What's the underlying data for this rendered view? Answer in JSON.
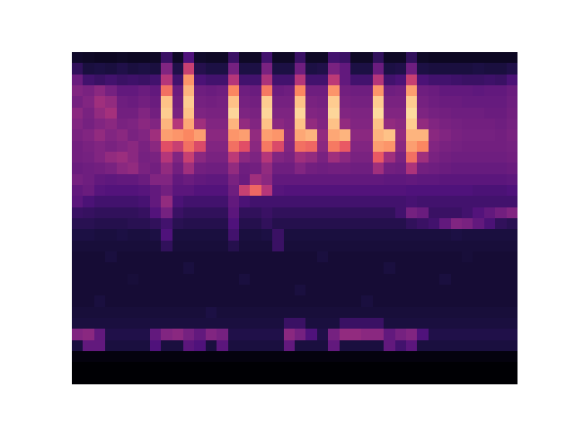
{
  "chart_data": {
    "type": "heatmap",
    "tick_labels": false,
    "grid": false,
    "xlim": [
      -0.5,
      39.5
    ],
    "ylim": [
      -0.5,
      29.5
    ],
    "zlim": [
      0,
      1
    ],
    "cells": [
      [
        0.08,
        0.07,
        0.06,
        0.06,
        0.07,
        0.06,
        0.06,
        0.07,
        0.2,
        0.07,
        0.25,
        0.08,
        0.07,
        0.07,
        0.2,
        0.07,
        0.07,
        0.22,
        0.07,
        0.07,
        0.2,
        0.07,
        0.07,
        0.22,
        0.2,
        0.07,
        0.07,
        0.18,
        0.07,
        0.07,
        0.18,
        0.07,
        0.06,
        0.06,
        0.06,
        0.06,
        0.06,
        0.06,
        0.06,
        0.06
      ],
      [
        0.18,
        0.12,
        0.13,
        0.12,
        0.14,
        0.12,
        0.13,
        0.12,
        0.38,
        0.14,
        0.55,
        0.15,
        0.13,
        0.13,
        0.35,
        0.13,
        0.13,
        0.36,
        0.13,
        0.13,
        0.33,
        0.13,
        0.14,
        0.36,
        0.3,
        0.13,
        0.13,
        0.32,
        0.13,
        0.14,
        0.33,
        0.13,
        0.12,
        0.12,
        0.12,
        0.12,
        0.13,
        0.12,
        0.12,
        0.14
      ],
      [
        0.32,
        0.22,
        0.2,
        0.22,
        0.2,
        0.21,
        0.2,
        0.22,
        0.5,
        0.22,
        0.78,
        0.24,
        0.22,
        0.22,
        0.5,
        0.22,
        0.22,
        0.48,
        0.22,
        0.22,
        0.5,
        0.22,
        0.22,
        0.52,
        0.3,
        0.22,
        0.22,
        0.5,
        0.22,
        0.24,
        0.55,
        0.24,
        0.22,
        0.22,
        0.21,
        0.2,
        0.2,
        0.21,
        0.2,
        0.24
      ],
      [
        0.38,
        0.36,
        0.4,
        0.35,
        0.3,
        0.3,
        0.32,
        0.3,
        0.7,
        0.32,
        0.85,
        0.33,
        0.32,
        0.33,
        0.75,
        0.33,
        0.32,
        0.72,
        0.32,
        0.33,
        0.75,
        0.33,
        0.33,
        0.78,
        0.34,
        0.33,
        0.33,
        0.78,
        0.33,
        0.34,
        0.8,
        0.33,
        0.32,
        0.3,
        0.3,
        0.3,
        0.29,
        0.3,
        0.3,
        0.32
      ],
      [
        0.35,
        0.38,
        0.45,
        0.42,
        0.33,
        0.32,
        0.34,
        0.32,
        0.88,
        0.34,
        0.9,
        0.35,
        0.34,
        0.35,
        0.88,
        0.35,
        0.34,
        0.9,
        0.35,
        0.35,
        0.88,
        0.36,
        0.35,
        0.9,
        0.36,
        0.35,
        0.35,
        0.9,
        0.36,
        0.36,
        0.9,
        0.35,
        0.33,
        0.32,
        0.32,
        0.31,
        0.31,
        0.31,
        0.31,
        0.33
      ],
      [
        0.4,
        0.36,
        0.42,
        0.46,
        0.34,
        0.34,
        0.38,
        0.34,
        0.9,
        0.36,
        0.88,
        0.37,
        0.36,
        0.36,
        0.92,
        0.37,
        0.36,
        0.92,
        0.37,
        0.37,
        0.92,
        0.38,
        0.37,
        0.92,
        0.38,
        0.37,
        0.37,
        0.93,
        0.38,
        0.38,
        0.93,
        0.37,
        0.35,
        0.34,
        0.33,
        0.33,
        0.33,
        0.32,
        0.32,
        0.34
      ],
      [
        0.38,
        0.35,
        0.38,
        0.4,
        0.36,
        0.37,
        0.4,
        0.38,
        0.85,
        0.5,
        0.82,
        0.45,
        0.38,
        0.38,
        0.85,
        0.42,
        0.38,
        0.88,
        0.4,
        0.38,
        0.88,
        0.42,
        0.38,
        0.88,
        0.42,
        0.38,
        0.38,
        0.88,
        0.42,
        0.4,
        0.9,
        0.42,
        0.38,
        0.36,
        0.35,
        0.34,
        0.34,
        0.34,
        0.33,
        0.35
      ],
      [
        0.36,
        0.38,
        0.42,
        0.38,
        0.4,
        0.36,
        0.38,
        0.45,
        0.8,
        0.78,
        0.75,
        0.8,
        0.4,
        0.4,
        0.78,
        0.8,
        0.42,
        0.8,
        0.78,
        0.4,
        0.82,
        0.85,
        0.42,
        0.82,
        0.85,
        0.4,
        0.4,
        0.85,
        0.88,
        0.42,
        0.85,
        0.85,
        0.4,
        0.38,
        0.36,
        0.35,
        0.35,
        0.35,
        0.34,
        0.36
      ],
      [
        0.34,
        0.36,
        0.38,
        0.36,
        0.38,
        0.4,
        0.36,
        0.4,
        0.62,
        0.55,
        0.7,
        0.6,
        0.38,
        0.38,
        0.7,
        0.62,
        0.4,
        0.72,
        0.6,
        0.38,
        0.7,
        0.68,
        0.4,
        0.72,
        0.65,
        0.38,
        0.38,
        0.8,
        0.78,
        0.4,
        0.8,
        0.75,
        0.38,
        0.36,
        0.35,
        0.34,
        0.34,
        0.34,
        0.34,
        0.35
      ],
      [
        0.34,
        0.35,
        0.38,
        0.42,
        0.44,
        0.4,
        0.35,
        0.36,
        0.5,
        0.38,
        0.55,
        0.4,
        0.36,
        0.36,
        0.52,
        0.4,
        0.37,
        0.5,
        0.38,
        0.36,
        0.45,
        0.42,
        0.36,
        0.45,
        0.4,
        0.36,
        0.36,
        0.65,
        0.45,
        0.36,
        0.7,
        0.45,
        0.36,
        0.34,
        0.33,
        0.33,
        0.33,
        0.33,
        0.33,
        0.34
      ],
      [
        0.32,
        0.33,
        0.34,
        0.36,
        0.4,
        0.42,
        0.36,
        0.34,
        0.42,
        0.34,
        0.45,
        0.34,
        0.33,
        0.33,
        0.42,
        0.33,
        0.34,
        0.42,
        0.33,
        0.33,
        0.38,
        0.34,
        0.33,
        0.34,
        0.34,
        0.33,
        0.33,
        0.45,
        0.34,
        0.33,
        0.48,
        0.34,
        0.33,
        0.32,
        0.31,
        0.31,
        0.31,
        0.31,
        0.31,
        0.32
      ],
      [
        0.35,
        0.33,
        0.3,
        0.29,
        0.3,
        0.3,
        0.32,
        0.38,
        0.38,
        0.3,
        0.32,
        0.3,
        0.29,
        0.29,
        0.36,
        0.32,
        0.45,
        0.4,
        0.3,
        0.3,
        0.3,
        0.3,
        0.3,
        0.3,
        0.3,
        0.3,
        0.3,
        0.3,
        0.29,
        0.29,
        0.3,
        0.29,
        0.29,
        0.28,
        0.28,
        0.28,
        0.28,
        0.28,
        0.28,
        0.29
      ],
      [
        0.3,
        0.32,
        0.27,
        0.26,
        0.26,
        0.26,
        0.27,
        0.3,
        0.34,
        0.28,
        0.28,
        0.26,
        0.26,
        0.26,
        0.33,
        0.55,
        0.68,
        0.5,
        0.27,
        0.26,
        0.26,
        0.26,
        0.26,
        0.26,
        0.26,
        0.26,
        0.26,
        0.26,
        0.26,
        0.26,
        0.25,
        0.25,
        0.25,
        0.25,
        0.25,
        0.25,
        0.24,
        0.24,
        0.24,
        0.25
      ],
      [
        0.28,
        0.24,
        0.22,
        0.22,
        0.22,
        0.22,
        0.23,
        0.3,
        0.42,
        0.24,
        0.22,
        0.22,
        0.22,
        0.22,
        0.3,
        0.24,
        0.22,
        0.22,
        0.22,
        0.22,
        0.22,
        0.22,
        0.22,
        0.22,
        0.22,
        0.22,
        0.22,
        0.22,
        0.22,
        0.22,
        0.23,
        0.22,
        0.22,
        0.22,
        0.22,
        0.22,
        0.22,
        0.22,
        0.22,
        0.22
      ],
      [
        0.2,
        0.19,
        0.18,
        0.18,
        0.18,
        0.18,
        0.19,
        0.26,
        0.35,
        0.2,
        0.18,
        0.18,
        0.18,
        0.18,
        0.28,
        0.18,
        0.18,
        0.2,
        0.18,
        0.18,
        0.18,
        0.18,
        0.18,
        0.18,
        0.18,
        0.18,
        0.18,
        0.18,
        0.18,
        0.22,
        0.35,
        0.32,
        0.2,
        0.2,
        0.2,
        0.22,
        0.26,
        0.3,
        0.34,
        0.38
      ],
      [
        0.16,
        0.16,
        0.15,
        0.15,
        0.15,
        0.16,
        0.16,
        0.18,
        0.22,
        0.16,
        0.15,
        0.15,
        0.15,
        0.15,
        0.25,
        0.15,
        0.15,
        0.18,
        0.15,
        0.15,
        0.15,
        0.15,
        0.15,
        0.15,
        0.15,
        0.15,
        0.15,
        0.15,
        0.15,
        0.15,
        0.18,
        0.2,
        0.22,
        0.3,
        0.38,
        0.36,
        0.3,
        0.24,
        0.18,
        0.16
      ],
      [
        0.13,
        0.13,
        0.12,
        0.12,
        0.13,
        0.12,
        0.12,
        0.13,
        0.25,
        0.12,
        0.12,
        0.12,
        0.12,
        0.12,
        0.22,
        0.12,
        0.12,
        0.13,
        0.2,
        0.12,
        0.12,
        0.12,
        0.12,
        0.12,
        0.12,
        0.12,
        0.12,
        0.12,
        0.12,
        0.12,
        0.12,
        0.12,
        0.12,
        0.12,
        0.13,
        0.12,
        0.12,
        0.12,
        0.12,
        0.12
      ],
      [
        0.11,
        0.11,
        0.11,
        0.11,
        0.11,
        0.11,
        0.11,
        0.11,
        0.18,
        0.11,
        0.11,
        0.11,
        0.11,
        0.11,
        0.15,
        0.11,
        0.11,
        0.11,
        0.2,
        0.11,
        0.11,
        0.11,
        0.11,
        0.11,
        0.11,
        0.11,
        0.11,
        0.11,
        0.11,
        0.11,
        0.11,
        0.11,
        0.11,
        0.11,
        0.11,
        0.11,
        0.11,
        0.11,
        0.11,
        0.11
      ],
      [
        0.1,
        0.1,
        0.1,
        0.12,
        0.1,
        0.1,
        0.1,
        0.1,
        0.1,
        0.1,
        0.1,
        0.1,
        0.1,
        0.1,
        0.1,
        0.1,
        0.1,
        0.1,
        0.1,
        0.1,
        0.1,
        0.1,
        0.12,
        0.1,
        0.1,
        0.1,
        0.1,
        0.1,
        0.1,
        0.1,
        0.1,
        0.1,
        0.1,
        0.1,
        0.1,
        0.11,
        0.1,
        0.1,
        0.1,
        0.1
      ],
      [
        0.1,
        0.1,
        0.1,
        0.1,
        0.1,
        0.1,
        0.1,
        0.1,
        0.1,
        0.1,
        0.12,
        0.1,
        0.1,
        0.1,
        0.1,
        0.1,
        0.1,
        0.1,
        0.1,
        0.1,
        0.1,
        0.1,
        0.1,
        0.1,
        0.1,
        0.1,
        0.1,
        0.1,
        0.12,
        0.1,
        0.1,
        0.1,
        0.1,
        0.1,
        0.1,
        0.1,
        0.1,
        0.1,
        0.1,
        0.1
      ],
      [
        0.1,
        0.1,
        0.1,
        0.1,
        0.1,
        0.11,
        0.1,
        0.1,
        0.1,
        0.1,
        0.1,
        0.1,
        0.1,
        0.1,
        0.1,
        0.12,
        0.1,
        0.1,
        0.1,
        0.1,
        0.1,
        0.1,
        0.1,
        0.1,
        0.1,
        0.1,
        0.1,
        0.1,
        0.1,
        0.1,
        0.1,
        0.1,
        0.1,
        0.12,
        0.1,
        0.1,
        0.1,
        0.1,
        0.1,
        0.1
      ],
      [
        0.1,
        0.1,
        0.1,
        0.1,
        0.1,
        0.1,
        0.1,
        0.1,
        0.1,
        0.1,
        0.1,
        0.1,
        0.1,
        0.1,
        0.1,
        0.1,
        0.1,
        0.1,
        0.1,
        0.1,
        0.12,
        0.1,
        0.1,
        0.1,
        0.1,
        0.1,
        0.1,
        0.1,
        0.1,
        0.1,
        0.1,
        0.1,
        0.1,
        0.1,
        0.1,
        0.1,
        0.1,
        0.1,
        0.1,
        0.1
      ],
      [
        0.1,
        0.1,
        0.12,
        0.1,
        0.1,
        0.1,
        0.1,
        0.1,
        0.1,
        0.1,
        0.1,
        0.1,
        0.1,
        0.1,
        0.1,
        0.1,
        0.1,
        0.1,
        0.1,
        0.1,
        0.1,
        0.1,
        0.1,
        0.1,
        0.1,
        0.1,
        0.12,
        0.1,
        0.1,
        0.1,
        0.1,
        0.1,
        0.1,
        0.1,
        0.1,
        0.1,
        0.1,
        0.1,
        0.1,
        0.1
      ],
      [
        0.11,
        0.11,
        0.11,
        0.11,
        0.11,
        0.11,
        0.11,
        0.11,
        0.11,
        0.11,
        0.11,
        0.11,
        0.13,
        0.11,
        0.11,
        0.11,
        0.11,
        0.11,
        0.11,
        0.11,
        0.11,
        0.11,
        0.11,
        0.11,
        0.11,
        0.11,
        0.11,
        0.11,
        0.11,
        0.11,
        0.11,
        0.11,
        0.11,
        0.11,
        0.11,
        0.11,
        0.11,
        0.11,
        0.11,
        0.11
      ],
      [
        0.12,
        0.12,
        0.12,
        0.12,
        0.12,
        0.12,
        0.12,
        0.12,
        0.12,
        0.12,
        0.12,
        0.12,
        0.12,
        0.12,
        0.12,
        0.12,
        0.12,
        0.12,
        0.12,
        0.2,
        0.2,
        0.12,
        0.12,
        0.12,
        0.2,
        0.2,
        0.2,
        0.2,
        0.12,
        0.12,
        0.12,
        0.12,
        0.12,
        0.12,
        0.12,
        0.12,
        0.12,
        0.12,
        0.12,
        0.12
      ],
      [
        0.38,
        0.4,
        0.3,
        0.14,
        0.14,
        0.14,
        0.14,
        0.3,
        0.38,
        0.4,
        0.35,
        0.3,
        0.38,
        0.35,
        0.14,
        0.14,
        0.14,
        0.14,
        0.14,
        0.4,
        0.35,
        0.25,
        0.14,
        0.35,
        0.42,
        0.42,
        0.4,
        0.4,
        0.3,
        0.35,
        0.38,
        0.25,
        0.14,
        0.14,
        0.14,
        0.14,
        0.14,
        0.14,
        0.14,
        0.14
      ],
      [
        0.12,
        0.3,
        0.3,
        0.12,
        0.12,
        0.12,
        0.12,
        0.25,
        0.12,
        0.12,
        0.28,
        0.25,
        0.12,
        0.28,
        0.12,
        0.12,
        0.12,
        0.12,
        0.12,
        0.3,
        0.12,
        0.12,
        0.12,
        0.3,
        0.12,
        0.12,
        0.12,
        0.12,
        0.3,
        0.22,
        0.28,
        0.12,
        0.12,
        0.12,
        0.12,
        0.12,
        0.12,
        0.12,
        0.12,
        0.12
      ],
      [
        0.02,
        0.02,
        0.02,
        0.02,
        0.02,
        0.02,
        0.02,
        0.02,
        0.02,
        0.02,
        0.02,
        0.02,
        0.02,
        0.02,
        0.02,
        0.02,
        0.02,
        0.02,
        0.02,
        0.02,
        0.02,
        0.02,
        0.02,
        0.02,
        0.02,
        0.02,
        0.02,
        0.02,
        0.02,
        0.02,
        0.02,
        0.02,
        0.02,
        0.02,
        0.02,
        0.02,
        0.02,
        0.02,
        0.02,
        0.02
      ],
      [
        0,
        0,
        0,
        0,
        0,
        0,
        0,
        0,
        0,
        0,
        0,
        0,
        0,
        0,
        0,
        0,
        0,
        0,
        0,
        0,
        0,
        0,
        0,
        0,
        0,
        0,
        0,
        0,
        0,
        0,
        0,
        0,
        0,
        0,
        0,
        0,
        0,
        0,
        0,
        0
      ],
      [
        0,
        0,
        0,
        0,
        0,
        0,
        0,
        0,
        0,
        0,
        0,
        0,
        0,
        0,
        0,
        0,
        0,
        0,
        0,
        0,
        0,
        0,
        0,
        0,
        0,
        0,
        0,
        0,
        0,
        0,
        0,
        0,
        0,
        0,
        0,
        0,
        0,
        0,
        0,
        0
      ]
    ]
  }
}
